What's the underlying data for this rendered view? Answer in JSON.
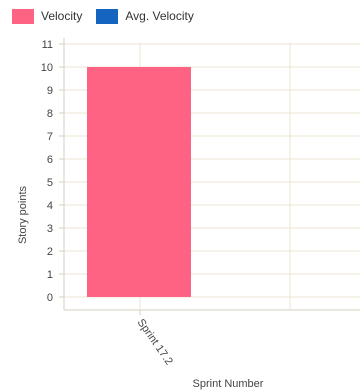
{
  "legend": {
    "items": [
      {
        "label": "Velocity",
        "color": "#ff6384"
      },
      {
        "label": "Avg. Velocity",
        "color": "#1565c0"
      }
    ]
  },
  "chart_data": {
    "type": "bar",
    "categories": [
      "Sprint 17.2"
    ],
    "series": [
      {
        "name": "Velocity",
        "values": [
          10
        ],
        "color": "#ff6384"
      },
      {
        "name": "Avg. Velocity",
        "values": [
          null
        ],
        "color": "#1565c0"
      }
    ],
    "title": "",
    "xlabel": "Sprint Number",
    "ylabel": "Story points",
    "ylim": [
      0,
      11
    ],
    "yticks": [
      0,
      1,
      2,
      3,
      4,
      5,
      6,
      7,
      8,
      9,
      10,
      11
    ],
    "grid": true,
    "legend_position": "top-left"
  }
}
